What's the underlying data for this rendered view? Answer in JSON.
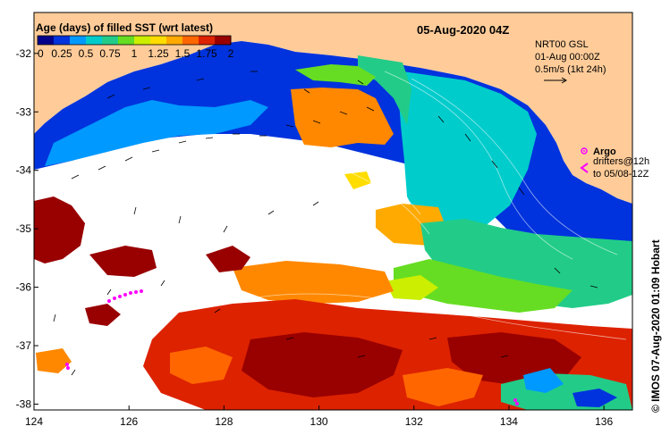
{
  "map": {
    "date_title": "05-Aug-2020 04Z",
    "legend": {
      "title": "Age (days) of filled SST (wrt latest)",
      "ticks": [
        "0",
        "0.25",
        "0.5",
        "0.75",
        "1",
        "1.25",
        "1.5",
        "1.75",
        "2"
      ],
      "colors": [
        "#00008b",
        "#0033dd",
        "#0099ff",
        "#00cccc",
        "#22cc88",
        "#66dd22",
        "#ccee00",
        "#ffdd00",
        "#ffaa00",
        "#ff6600",
        "#dd2200",
        "#990000"
      ]
    },
    "currents": {
      "source": "NRT00 GSL",
      "time": "01-Aug 00:00Z",
      "scale": "0.5m/s (1kt 24h)"
    },
    "markers": {
      "argo_label": "Argo",
      "drifter_label_1": "drifters@12h",
      "drifter_label_2": "to 05/08-12Z"
    },
    "credit": "© IMOS 07-Aug-2020 01:09 Hobart",
    "x_axis": {
      "ticks": [
        "124",
        "126",
        "128",
        "130",
        "132",
        "134",
        "136"
      ],
      "range": [
        124,
        136.6
      ]
    },
    "y_axis": {
      "ticks": [
        "-32",
        "-33",
        "-34",
        "-35",
        "-36",
        "-37",
        "-38"
      ],
      "range": [
        -38.1,
        -31.3
      ]
    },
    "colors": {
      "land": "#ffcc99",
      "no_data": "#ffffff",
      "drifter": "#ff00ff"
    }
  }
}
